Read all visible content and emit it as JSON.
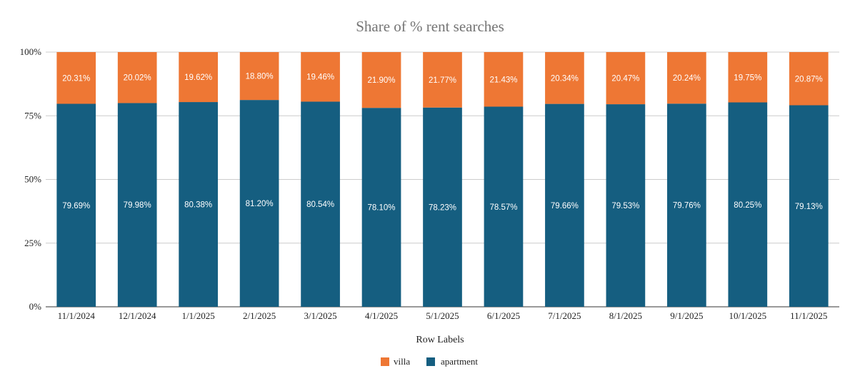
{
  "chart_data": {
    "type": "bar",
    "stacked": true,
    "title": "Share of % rent searches",
    "xlabel": "Row Labels",
    "ylabel": "",
    "ylim": [
      0,
      100
    ],
    "yticks": [
      "0%",
      "25%",
      "50%",
      "75%",
      "100%"
    ],
    "grid": true,
    "legend_position": "bottom",
    "categories": [
      "11/1/2024",
      "12/1/2024",
      "1/1/2025",
      "2/1/2025",
      "3/1/2025",
      "4/1/2025",
      "5/1/2025",
      "6/1/2025",
      "7/1/2025",
      "8/1/2025",
      "9/1/2025",
      "10/1/2025",
      "11/1/2025"
    ],
    "series": [
      {
        "name": "apartment",
        "color": "#155e80",
        "values": [
          79.69,
          79.98,
          80.38,
          81.2,
          80.54,
          78.1,
          78.23,
          78.57,
          79.66,
          79.53,
          79.76,
          80.25,
          79.13
        ],
        "labels": [
          "79.69%",
          "79.98%",
          "80.38%",
          "81.20%",
          "80.54%",
          "78.10%",
          "78.23%",
          "78.57%",
          "79.66%",
          "79.53%",
          "79.76%",
          "80.25%",
          "79.13%"
        ]
      },
      {
        "name": "villa",
        "color": "#ee7734",
        "values": [
          20.31,
          20.02,
          19.62,
          18.8,
          19.46,
          21.9,
          21.77,
          21.43,
          20.34,
          20.47,
          20.24,
          19.75,
          20.87
        ],
        "labels": [
          "20.31%",
          "20.02%",
          "19.62%",
          "18.80%",
          "19.46%",
          "21.90%",
          "21.77%",
          "21.43%",
          "20.34%",
          "20.47%",
          "20.24%",
          "19.75%",
          "20.87%"
        ]
      }
    ],
    "legend_order": [
      "villa",
      "apartment"
    ]
  }
}
